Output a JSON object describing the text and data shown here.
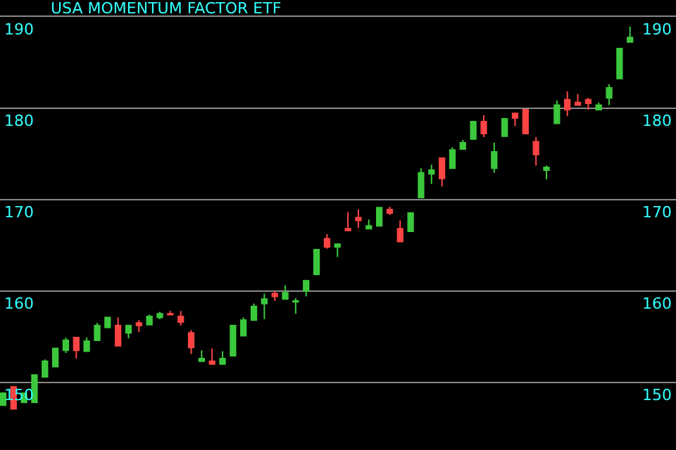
{
  "chart_data": {
    "type": "candlestick",
    "title": "USA MOMENTUM FACTOR ETF",
    "categories": [
      null,
      null,
      null,
      null,
      null,
      null,
      null,
      null,
      null,
      null,
      null,
      null,
      null,
      null,
      null,
      null,
      null,
      null,
      null,
      null,
      null,
      null,
      null,
      null,
      null,
      null,
      null,
      null,
      null,
      null,
      null,
      null,
      null,
      null,
      null,
      null,
      null,
      null,
      null,
      null,
      null,
      null,
      null,
      null,
      null,
      null,
      null,
      null,
      null,
      null,
      null,
      null,
      null,
      null,
      null,
      null,
      null,
      null,
      null,
      null,
      null
    ],
    "ohlc": [
      [
        147.5,
        148.9,
        147.5,
        148.8
      ],
      [
        149.5,
        149.5,
        147.1,
        147.1
      ],
      [
        147.8,
        148.8,
        147.8,
        148.8
      ],
      [
        147.8,
        150.8,
        147.8,
        150.8
      ],
      [
        150.6,
        152.5,
        150.6,
        152.3
      ],
      [
        151.7,
        153.7,
        151.7,
        153.7
      ],
      [
        153.5,
        154.9,
        153.2,
        154.6
      ],
      [
        154.9,
        154.9,
        152.6,
        153.5
      ],
      [
        153.4,
        154.9,
        153.4,
        154.5
      ],
      [
        154.6,
        156.5,
        154.6,
        156.2
      ],
      [
        156.0,
        157.1,
        156.0,
        157.1
      ],
      [
        156.2,
        157.1,
        154.0,
        154.0
      ],
      [
        155.4,
        156.3,
        154.8,
        156.2
      ],
      [
        156.5,
        156.8,
        155.5,
        156.2
      ],
      [
        156.3,
        157.4,
        156.3,
        157.2
      ],
      [
        157.1,
        157.7,
        156.9,
        157.5
      ],
      [
        157.5,
        157.8,
        157.4,
        157.4
      ],
      [
        157.2,
        157.8,
        156.2,
        156.6
      ],
      [
        155.4,
        155.7,
        153.1,
        153.8
      ],
      [
        152.3,
        153.5,
        152.3,
        152.6
      ],
      [
        152.3,
        153.7,
        152.0,
        152.0
      ],
      [
        152.0,
        153.4,
        152.0,
        152.6
      ],
      [
        152.9,
        156.2,
        152.9,
        156.2
      ],
      [
        155.1,
        157.1,
        155.1,
        156.8
      ],
      [
        156.8,
        158.6,
        156.8,
        158.3
      ],
      [
        158.6,
        159.7,
        156.9,
        159.1
      ],
      [
        159.7,
        160.0,
        158.9,
        159.4
      ],
      [
        159.1,
        160.6,
        159.1,
        159.8
      ],
      [
        158.8,
        159.2,
        157.5,
        158.9
      ],
      [
        160.0,
        161.2,
        159.4,
        161.1
      ],
      [
        161.8,
        164.5,
        161.7,
        164.5
      ],
      [
        165.7,
        166.2,
        164.6,
        164.8
      ],
      [
        164.8,
        165.2,
        163.7,
        165.1
      ],
      [
        166.8,
        168.6,
        166.5,
        166.6
      ],
      [
        168.0,
        168.9,
        166.9,
        167.7
      ],
      [
        166.8,
        167.8,
        166.8,
        167.1
      ],
      [
        167.1,
        169.1,
        167.1,
        169.1
      ],
      [
        168.9,
        169.2,
        168.3,
        168.5
      ],
      [
        166.8,
        167.7,
        165.4,
        165.4
      ],
      [
        166.5,
        168.6,
        166.5,
        168.5
      ],
      [
        170.2,
        173.4,
        170.2,
        172.9
      ],
      [
        172.8,
        173.8,
        171.7,
        173.2
      ],
      [
        174.5,
        174.6,
        171.4,
        172.3
      ],
      [
        173.4,
        175.7,
        173.4,
        175.4
      ],
      [
        175.5,
        176.5,
        175.5,
        176.2
      ],
      [
        176.6,
        178.6,
        176.5,
        178.5
      ],
      [
        178.5,
        179.2,
        176.8,
        177.2
      ],
      [
        173.4,
        176.2,
        172.9,
        175.2
      ],
      [
        176.9,
        178.9,
        176.9,
        178.8
      ],
      [
        179.4,
        179.5,
        178.0,
        178.9
      ],
      [
        179.8,
        179.8,
        177.2,
        177.2
      ],
      [
        176.3,
        176.8,
        173.7,
        174.9
      ],
      [
        173.2,
        173.7,
        172.2,
        173.5
      ],
      [
        178.3,
        180.8,
        178.3,
        180.3
      ],
      [
        180.9,
        181.8,
        179.1,
        179.8
      ],
      [
        180.6,
        181.5,
        180.3,
        180.3
      ],
      [
        180.9,
        181.1,
        179.8,
        180.5
      ],
      [
        179.8,
        180.6,
        179.8,
        180.3
      ],
      [
        181.1,
        182.6,
        180.3,
        182.2
      ],
      [
        183.2,
        186.5,
        183.2,
        186.5
      ],
      [
        187.2,
        188.9,
        187.2,
        187.7
      ]
    ],
    "colors": [
      "#3cc83c",
      "#ff4444",
      "#3cc83c",
      "#3cc83c",
      "#3cc83c",
      "#3cc83c",
      "#3cc83c",
      "#ff4444",
      "#3cc83c",
      "#3cc83c",
      "#3cc83c",
      "#ff4444",
      "#3cc83c",
      "#ff4444",
      "#3cc83c",
      "#3cc83c",
      "#ff4444",
      "#ff4444",
      "#ff4444",
      "#3cc83c",
      "#ff4444",
      "#3cc83c",
      "#3cc83c",
      "#3cc83c",
      "#3cc83c",
      "#3cc83c",
      "#ff4444",
      "#3cc83c",
      "#3cc83c",
      "#3cc83c",
      "#3cc83c",
      "#ff4444",
      "#3cc83c",
      "#ff4444",
      "#ff4444",
      "#3cc83c",
      "#3cc83c",
      "#ff4444",
      "#ff4444",
      "#3cc83c",
      "#3cc83c",
      "#3cc83c",
      "#ff4444",
      "#3cc83c",
      "#3cc83c",
      "#3cc83c",
      "#ff4444",
      "#3cc83c",
      "#3cc83c",
      "#ff4444",
      "#ff4444",
      "#ff4444",
      "#3cc83c",
      "#3cc83c",
      "#ff4444",
      "#ff4444",
      "#ff4444",
      "#3cc83c",
      "#3cc83c",
      "#3cc83c",
      "#3cc83c"
    ],
    "ylim": [
      142.6,
      191.8
    ],
    "yticks": [
      150,
      160,
      170,
      180,
      190
    ],
    "y2lim": [
      142.6,
      191.8
    ],
    "y2ticks": [
      150,
      160,
      170,
      180,
      190
    ],
    "grid": "y",
    "legend": false,
    "tick_labels": "y"
  }
}
